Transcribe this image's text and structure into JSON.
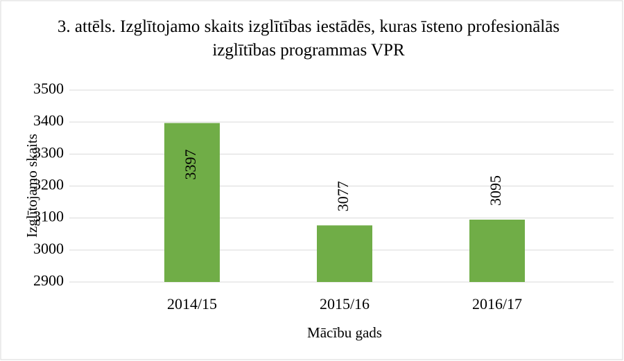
{
  "chart_data": {
    "type": "bar",
    "title": "3. attēls. Izglītojamo skaits izglītības iestādēs, kuras īsteno profesionālās izglītības programmas VPR",
    "x_label": "Mācību gads",
    "y_label": "Izglītojamo skaits",
    "categories": [
      "2014/15",
      "2015/16",
      "2016/17"
    ],
    "values": [
      3397,
      3077,
      3095
    ],
    "color": "#70ad47",
    "ylim": [
      2900,
      3500
    ],
    "yticks": [
      2900,
      3000,
      3100,
      3200,
      3300,
      3400,
      3500
    ],
    "grid": true
  }
}
